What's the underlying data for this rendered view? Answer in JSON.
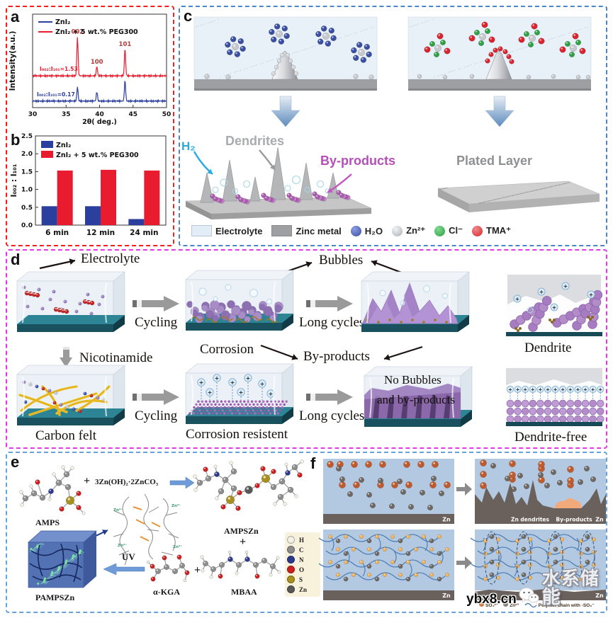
{
  "watermark": {
    "site": "ybx8.cn",
    "brand": "水系储能"
  },
  "chart_data": [
    {
      "panel": "a",
      "type": "line",
      "title": "",
      "xlabel": "2θ( deg.)",
      "ylabel": "Intensity(a.u.)",
      "xlim": [
        30,
        50
      ],
      "xticks": [
        30,
        35,
        40,
        45,
        50
      ],
      "grid": false,
      "legend_position": "top-left",
      "peaks": [
        {
          "label": "002",
          "two_theta": 36.7
        },
        {
          "label": "100",
          "two_theta": 39.6
        },
        {
          "label": "101",
          "two_theta": 43.8
        }
      ],
      "series": [
        {
          "name": "ZnI₂",
          "color": "#2b3f9e",
          "baseline_frac": 0.07,
          "peak_height_fracs": [
            0.15,
            0.1,
            0.22
          ],
          "annotation": "I₀₀₂:I₁₀₁=0.17"
        },
        {
          "name": "ZnI₂ + 5 wt.% PEG300",
          "color": "#e81c2e",
          "baseline_frac": 0.34,
          "peak_height_fracs": [
            0.42,
            0.1,
            0.29
          ],
          "annotation": "I₀₀₂:I₁₀₁=1.53"
        }
      ]
    },
    {
      "panel": "b",
      "type": "bar",
      "categories": [
        "6 min",
        "12 min",
        "24 min"
      ],
      "series": [
        {
          "name": "ZnI₂",
          "color": "#2b3f9e",
          "values": [
            0.53,
            0.53,
            0.17
          ]
        },
        {
          "name": "ZnI₂ + 5 wt.% PEG300",
          "color": "#e81c2e",
          "values": [
            1.53,
            1.55,
            1.53
          ]
        }
      ],
      "ylabel": "I₀₀₂ : I₁₀₁",
      "ylim": [
        0,
        2.5
      ],
      "yticks": [
        0,
        0.5,
        1,
        1.5,
        2,
        2.5
      ],
      "grid": false,
      "legend_position": "top-left"
    }
  ],
  "panels": {
    "a": {
      "label": "a"
    },
    "b": {
      "label": "b"
    },
    "c": {
      "label": "c",
      "h2": "H₂",
      "dendrites": "Dendrites",
      "byproducts": "By-products",
      "plated_layer": "Plated Layer",
      "legend": {
        "electrolyte": "Electrolyte",
        "zinc_metal": "Zinc metal",
        "h2o": "H₂O",
        "zn2": "Zn²⁺",
        "cl": "Cl⁻",
        "tma": "TMA⁺"
      },
      "colors": {
        "h2o_ball": "#3b4fa2",
        "zn_ball": "#c6c9cd",
        "cl_ball": "#2fa043",
        "tma_ball": "#d8242c"
      }
    },
    "d": {
      "label": "d",
      "electrolyte": "Electrolyte",
      "bubbles": "Bubbles",
      "cycling1": "Cycling",
      "corrosion": "Corrosion",
      "long_cycles1": "Long cycles",
      "byproducts": "By-products",
      "dendrite": "Dendrite",
      "nicotinamide": "Nicotinamide",
      "carbon_felt": "Carbon felt",
      "cycling2": "Cycling",
      "corrosion_resistent": "Corrosion resistent",
      "long_cycles2": "Long cycles",
      "no_bubbles_line1": "No Bubbles",
      "no_bubbles_line2": "and by-products",
      "dendrite_free": "Dendrite-free",
      "ion_plus": "+"
    },
    "e": {
      "label": "e",
      "amps": "AMPS",
      "plus1": "+",
      "zinc_salt": "3Zn(OH)₂·2ZnCO₃",
      "ampszn": "AMPSZn",
      "plus2": "+",
      "mbaa": "MBAA",
      "akga": "α-KGA",
      "plus3": "+",
      "uv": "UV",
      "pampszn": "PAMPSZn",
      "zn_ion": "Zn²⁺",
      "atom_legend": [
        {
          "symbol": "H",
          "color": "#f4f1e6"
        },
        {
          "symbol": "C",
          "color": "#8d8d8d"
        },
        {
          "symbol": "N",
          "color": "#2b3a8e"
        },
        {
          "symbol": "O",
          "color": "#cc2020"
        },
        {
          "symbol": "S",
          "color": "#a8901f"
        },
        {
          "symbol": "Zn",
          "color": "#585858"
        }
      ]
    },
    "f": {
      "label": "f",
      "zn1": "Zn",
      "zn2": "Zn",
      "zn3": "Zn",
      "zn4": "Zn",
      "zn_dendrites": "Zn dendrites",
      "byproducts": "By-products",
      "legend": {
        "so4": "SO₄²⁻",
        "zn": "Zn²⁺",
        "polymer": "Polymer chain with -SO₃⁻"
      }
    }
  }
}
